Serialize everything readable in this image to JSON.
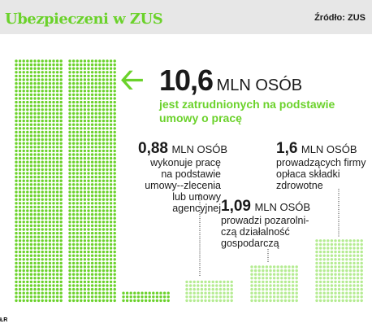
{
  "header": {
    "title": "Ubezpieczeni w ZUS",
    "source": "Źródło: ZUS"
  },
  "colors": {
    "green": "#6bd22b",
    "light_green": "#b5ec92",
    "header_bg": "#e7e7e7",
    "text": "#1a1a1a"
  },
  "main_stat": {
    "arrow_icon": "left-arrow-icon",
    "value": "10,6",
    "unit": "MLN OSÓB",
    "description": "jest zatrudnionych na podstawie umowy o pracę"
  },
  "stats": [
    {
      "value": "0,88",
      "unit": "MLN OSÓB",
      "description": "wykonuje pracę na podstawie umowy--zlecenia lub umowy agencyjnej",
      "level": 0.88
    },
    {
      "value": "1,09",
      "unit": "MLN OSÓB",
      "description": "prowadzi pozarolni-czą działalność gospodarczą",
      "level": 1.09
    },
    {
      "value": "1,6",
      "unit": "MLN OSÓB",
      "description": "prowadzących firmy opłaca składki zdrowotne",
      "level": 1.6
    }
  ],
  "credit": "ŁR"
}
